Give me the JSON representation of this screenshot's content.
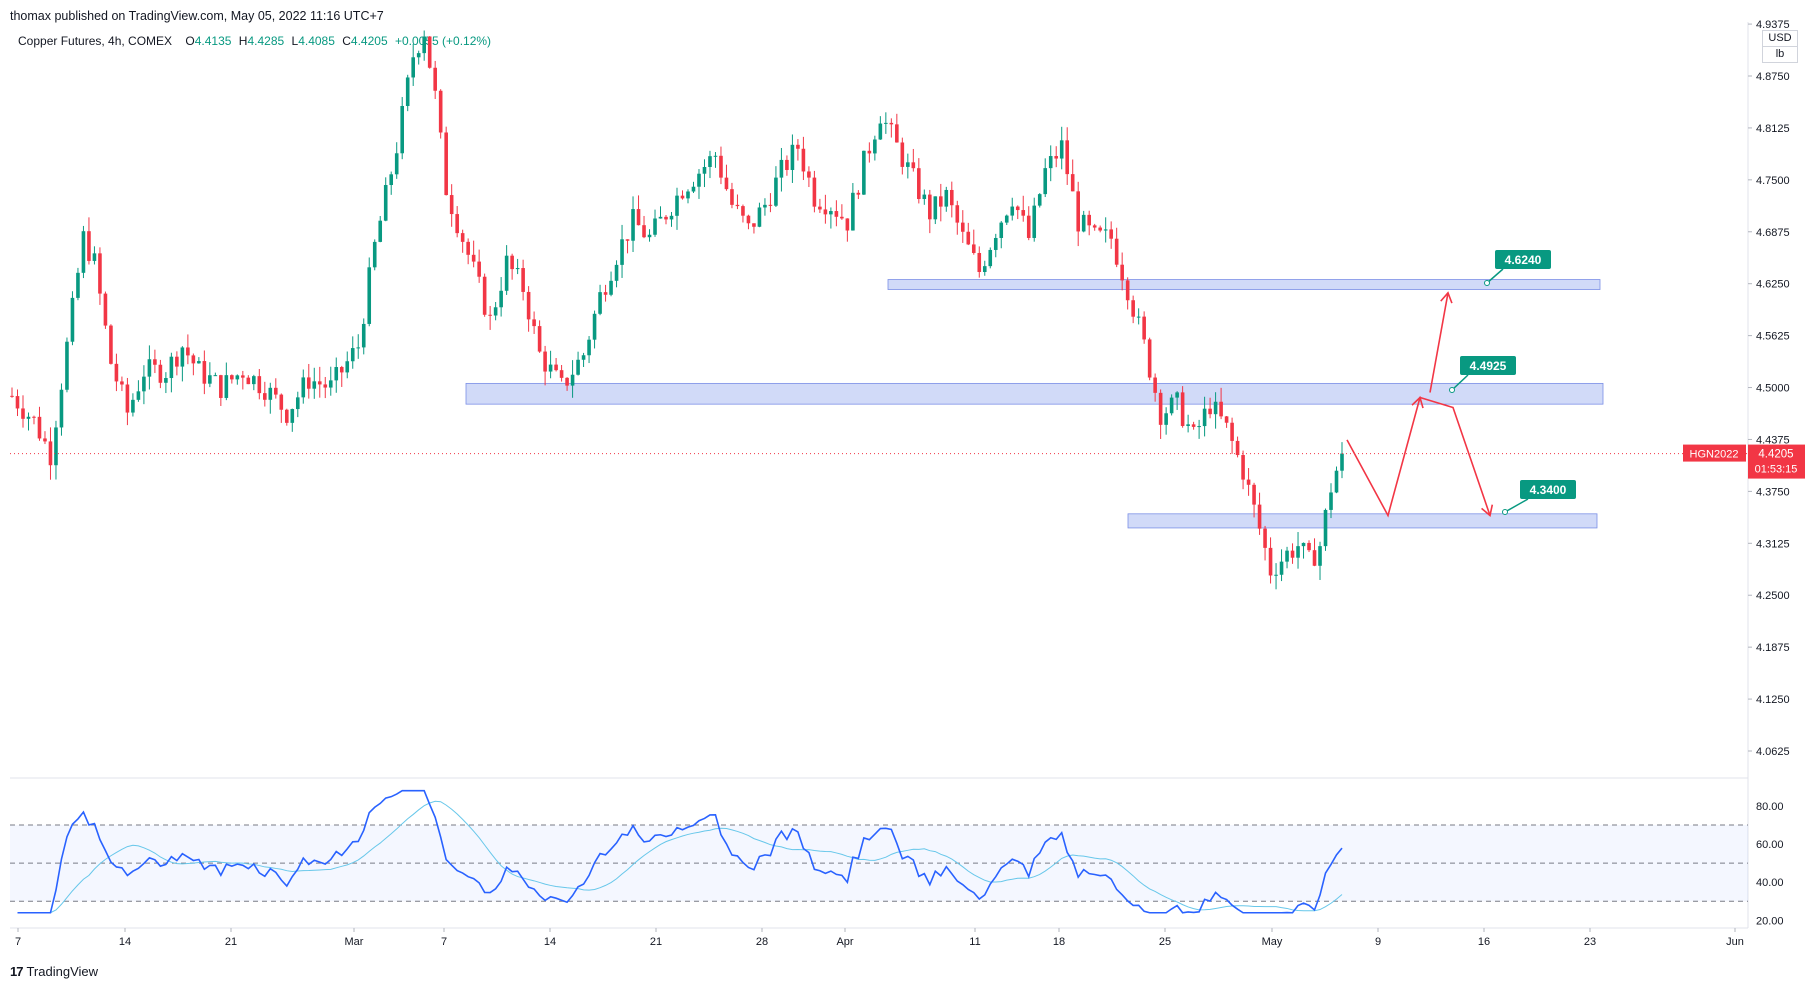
{
  "header": {
    "published": "thomax published on TradingView.com, May 05, 2022 11:16 UTC+7"
  },
  "legend": {
    "symbol": "Copper Futures, 4h, COMEX",
    "open_label": "O",
    "open": "4.4135",
    "high_label": "H",
    "high": "4.4285",
    "low_label": "L",
    "low": "4.4085",
    "close_label": "C",
    "close": "4.4205",
    "change": "+0.0055 (+0.12%)"
  },
  "axis": {
    "currency": "USD",
    "unit": "lb"
  },
  "footer": {
    "brand": "TradingView",
    "logo_glyph": "17"
  },
  "colors": {
    "up": "#089981",
    "down": "#f23645",
    "zone": "#c9d3f7",
    "zone_border": "#7b8fe6",
    "rsi": "#2962ff",
    "rsi_ma": "#67c7ea",
    "price_line": "#f23645",
    "label": "#089981"
  },
  "chart_data": {
    "type": "candlestick",
    "y_ticks": [
      "4.9375",
      "4.8750",
      "4.8125",
      "4.7500",
      "4.6875",
      "4.6250",
      "4.5625",
      "4.5000",
      "4.4375",
      "4.3750",
      "4.3125",
      "4.2500",
      "4.1875",
      "4.1250",
      "4.0625"
    ],
    "ylim": [
      4.03,
      4.94
    ],
    "x_ticks": [
      "7",
      "14",
      "21",
      "Mar",
      "7",
      "14",
      "21",
      "28",
      "Apr",
      "11",
      "18",
      "25",
      "May",
      "9",
      "16",
      "23",
      "Jun"
    ],
    "current_price": {
      "symbol": "HGN2022",
      "price": "4.4205",
      "countdown": "01:53:15",
      "value": 4.4205
    },
    "zones": [
      {
        "low": 4.618,
        "high": 4.63,
        "label": "4.6240"
      },
      {
        "low": 4.48,
        "high": 4.505,
        "label": "4.4925"
      },
      {
        "low": 4.331,
        "high": 4.348,
        "label": "4.3400"
      }
    ],
    "projection_path": [
      4.437,
      4.346,
      4.488,
      4.476,
      4.346
    ],
    "projection_arrow": [
      4.494,
      4.614
    ],
    "closes_anchor": [
      [
        0,
        4.49
      ],
      [
        4,
        4.46
      ],
      [
        7,
        4.42
      ],
      [
        10,
        4.55
      ],
      [
        13,
        4.68
      ],
      [
        15,
        4.65
      ],
      [
        18,
        4.53
      ],
      [
        21,
        4.47
      ],
      [
        24,
        4.52
      ],
      [
        28,
        4.52
      ],
      [
        31,
        4.55
      ],
      [
        34,
        4.52
      ],
      [
        38,
        4.5
      ],
      [
        42,
        4.52
      ],
      [
        46,
        4.5
      ],
      [
        50,
        4.47
      ],
      [
        54,
        4.51
      ],
      [
        58,
        4.5
      ],
      [
        60,
        4.52
      ],
      [
        63,
        4.55
      ],
      [
        66,
        4.67
      ],
      [
        70,
        4.79
      ],
      [
        73,
        4.9
      ],
      [
        75,
        4.93
      ],
      [
        77,
        4.85
      ],
      [
        79,
        4.74
      ],
      [
        81,
        4.7
      ],
      [
        84,
        4.64
      ],
      [
        87,
        4.58
      ],
      [
        90,
        4.65
      ],
      [
        93,
        4.62
      ],
      [
        96,
        4.54
      ],
      [
        100,
        4.5
      ],
      [
        104,
        4.54
      ],
      [
        107,
        4.61
      ],
      [
        110,
        4.66
      ],
      [
        113,
        4.7
      ],
      [
        116,
        4.68
      ],
      [
        119,
        4.71
      ],
      [
        122,
        4.74
      ],
      [
        125,
        4.76
      ],
      [
        128,
        4.78
      ],
      [
        131,
        4.72
      ],
      [
        134,
        4.69
      ],
      [
        137,
        4.72
      ],
      [
        140,
        4.76
      ],
      [
        143,
        4.79
      ],
      [
        146,
        4.73
      ],
      [
        149,
        4.72
      ],
      [
        152,
        4.7
      ],
      [
        155,
        4.77
      ],
      [
        158,
        4.83
      ],
      [
        161,
        4.79
      ],
      [
        164,
        4.75
      ],
      [
        167,
        4.71
      ],
      [
        170,
        4.73
      ],
      [
        173,
        4.68
      ],
      [
        176,
        4.64
      ],
      [
        179,
        4.69
      ],
      [
        182,
        4.73
      ],
      [
        185,
        4.68
      ],
      [
        188,
        4.76
      ],
      [
        191,
        4.79
      ],
      [
        194,
        4.7
      ],
      [
        197,
        4.68
      ],
      [
        200,
        4.68
      ],
      [
        203,
        4.62
      ],
      [
        206,
        4.55
      ],
      [
        209,
        4.47
      ],
      [
        212,
        4.48
      ],
      [
        215,
        4.44
      ],
      [
        218,
        4.48
      ],
      [
        221,
        4.45
      ],
      [
        224,
        4.4
      ],
      [
        227,
        4.33
      ],
      [
        229,
        4.28
      ],
      [
        232,
        4.3
      ],
      [
        234,
        4.31
      ],
      [
        236,
        4.29
      ],
      [
        238,
        4.31
      ],
      [
        240,
        4.38
      ],
      [
        242,
        4.4205
      ]
    ]
  },
  "rsi": {
    "y_ticks": [
      "80.00",
      "60.00",
      "40.00",
      "20.00"
    ],
    "ylim": [
      16,
      91
    ],
    "levels": [
      70,
      50,
      30
    ]
  }
}
